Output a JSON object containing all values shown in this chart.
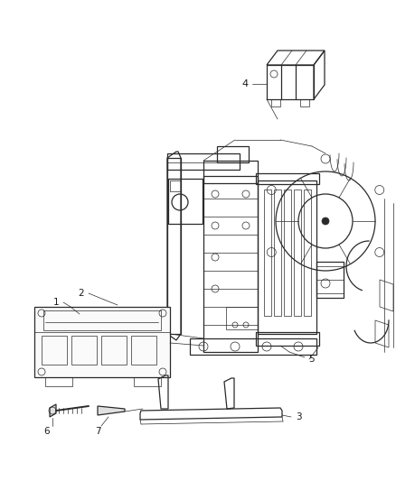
{
  "background_color": "#ffffff",
  "line_color": "#2a2a2a",
  "label_color": "#1a1a1a",
  "fig_width": 4.38,
  "fig_height": 5.33,
  "dpi": 100,
  "label_fontsize": 7.5,
  "lw_main": 0.9,
  "lw_thin": 0.5,
  "lw_thick": 1.4
}
